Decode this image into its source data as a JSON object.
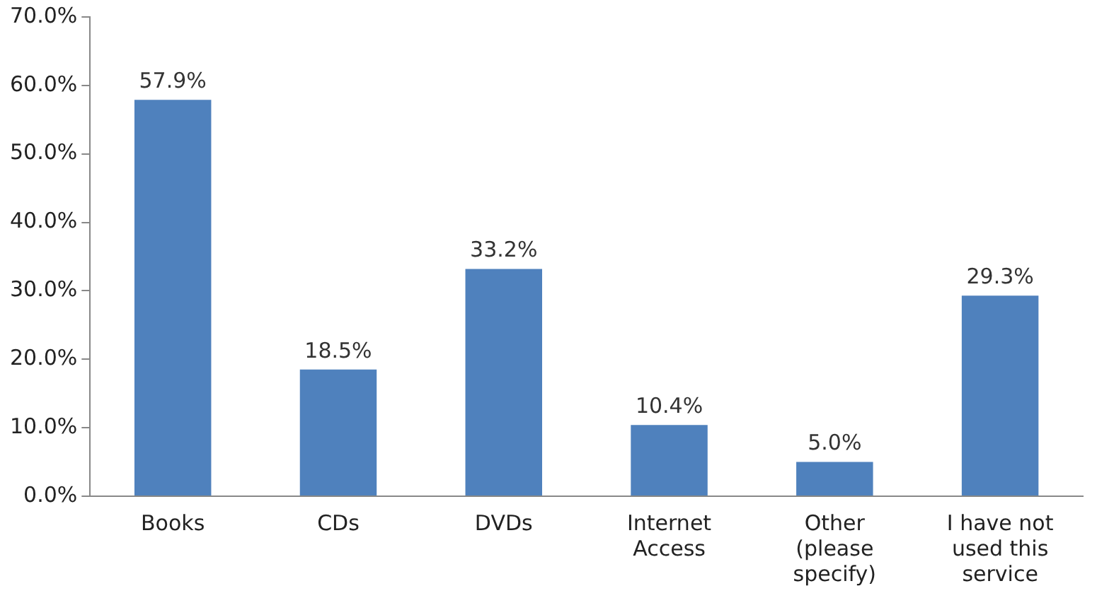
{
  "chart_data": {
    "type": "bar",
    "categories": [
      "Books",
      "CDs",
      "DVDs",
      "Internet Access",
      "Other (please specify)",
      "I have not used this service"
    ],
    "values": [
      57.9,
      18.5,
      33.2,
      10.4,
      5.0,
      29.3
    ],
    "value_labels": [
      "57.9%",
      "18.5%",
      "33.2%",
      "10.4%",
      "5.0%",
      "29.3%"
    ],
    "color": "#4f81bd",
    "ylim": [
      0,
      70
    ],
    "yticks": [
      {
        "value": 0,
        "label": "0.0%"
      },
      {
        "value": 10,
        "label": "10.0%"
      },
      {
        "value": 20,
        "label": "20.0%"
      },
      {
        "value": 30,
        "label": "30.0%"
      },
      {
        "value": 40,
        "label": "40.0%"
      },
      {
        "value": 50,
        "label": "50.0%"
      },
      {
        "value": 60,
        "label": "60.0%"
      },
      {
        "value": 70,
        "label": "70.0%"
      }
    ],
    "grid": false,
    "legend": false
  }
}
